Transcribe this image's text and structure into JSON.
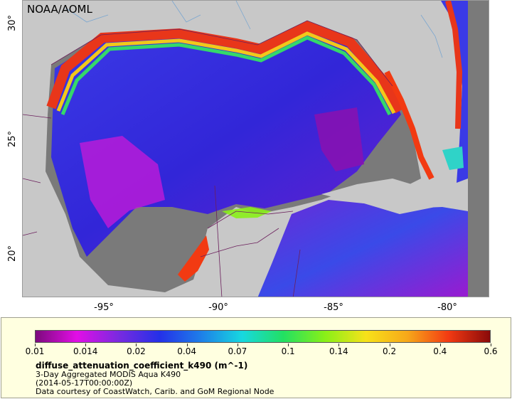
{
  "map": {
    "credit": "NOAA/AOML",
    "latitude_labels": [
      "30°",
      "25°",
      "20°"
    ],
    "longitude_labels": [
      "-95°",
      "-90°",
      "-85°",
      "-80°"
    ],
    "colors": {
      "land": "#c8c8c8",
      "no_data": "#7a7a7a",
      "coastline": "#6b1f5c",
      "rivers": "#7aa6d0"
    }
  },
  "legend": {
    "tick_labels": [
      "0.01",
      "0.014",
      "0.02",
      "0.04",
      "0.07",
      "0.1",
      "0.14",
      "0.2",
      "0.4",
      "0.6"
    ],
    "variable": "diffuse_attenuation_coefficient_k490 (m^-1)",
    "dataset": "3-Day Aggregated MODIS Aqua K490",
    "time": "(2014-05-17T00:00:00Z)",
    "source": "Data courtesy of CoastWatch, Carib. and GoM Regional Node",
    "colormap": [
      "#7d0a7d",
      "#e20ee6",
      "#7a2ae0",
      "#2430e8",
      "#1e7ee8",
      "#17d8e0",
      "#22e062",
      "#88f018",
      "#f7e21a",
      "#f7a81a",
      "#f23a12",
      "#8a0a0a"
    ]
  }
}
